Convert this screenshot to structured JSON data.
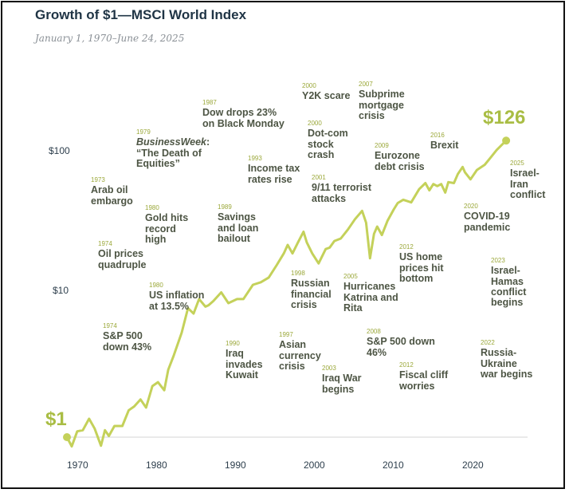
{
  "title": "Growth of $1—MSCI World Index",
  "subtitle": "January 1, 1970–June 24, 2025",
  "start_label": "$1",
  "end_label": "$126",
  "colors": {
    "line": "#c4d15a",
    "accent": "#a9bd44",
    "text": "#4d5544",
    "year": "#9ba83a"
  },
  "chart_data": {
    "type": "line",
    "title": "Growth of $1—MSCI World Index",
    "xlabel": "",
    "ylabel": "",
    "yscale": "log",
    "xlim": [
      1970,
      2025.5
    ],
    "ylim": [
      1,
      126
    ],
    "x_ticks": [
      "1970",
      "1980",
      "1990",
      "2000",
      "2010",
      "2020"
    ],
    "y_ticks": [
      {
        "value": 10,
        "label": "$10"
      },
      {
        "value": 100,
        "label": "$100"
      }
    ],
    "series": [
      {
        "name": "MSCI World Index growth of $1",
        "x": [
          1970,
          1970.6,
          1971.3,
          1972,
          1972.8,
          1973.5,
          1974.3,
          1974.8,
          1975.3,
          1976,
          1977,
          1977.8,
          1978.5,
          1979.3,
          1980,
          1980.8,
          1981.5,
          1982.3,
          1982.8,
          1983.5,
          1984.5,
          1985.3,
          1986,
          1986.7,
          1987.5,
          1987.9,
          1988.5,
          1989.5,
          1990.4,
          1991.5,
          1992.3,
          1993.5,
          1994.5,
          1995.5,
          1996.5,
          1997.4,
          1997.9,
          1998.5,
          1999.2,
          1999.9,
          2000.3,
          2001,
          2001.8,
          2002.7,
          2003.2,
          2003.8,
          2004.6,
          2005.5,
          2006.4,
          2007.3,
          2007.8,
          2008.3,
          2008.8,
          2009.2,
          2009.8,
          2010.5,
          2011.3,
          2011.8,
          2012.5,
          2013.5,
          2014.5,
          2015.3,
          2015.8,
          2016.3,
          2016.8,
          2017.3,
          2017.8,
          2018.2,
          2018.9,
          2019.4,
          2020,
          2020.3,
          2021,
          2021.8,
          2022.8,
          2023.5,
          2024.3,
          2025.5
        ],
        "y": [
          1,
          0.86,
          1.1,
          1.12,
          1.35,
          1.15,
          0.87,
          1.12,
          1.02,
          1.2,
          1.2,
          1.55,
          1.65,
          1.85,
          1.62,
          2.3,
          2.45,
          2.15,
          3.0,
          3.8,
          5.5,
          8.2,
          7.5,
          9.5,
          8.4,
          8.6,
          9.2,
          10.6,
          8.9,
          9.5,
          9.5,
          12.0,
          12.5,
          13.5,
          16.5,
          20.0,
          23.0,
          20.0,
          24.0,
          28.5,
          24.0,
          20.0,
          17.0,
          21.5,
          22.0,
          24.5,
          25.5,
          29.5,
          35.0,
          40.0,
          33.0,
          18.5,
          27.5,
          31.0,
          27.0,
          34.0,
          41.0,
          45.5,
          48.0,
          46.0,
          57.0,
          63.0,
          56.0,
          62.0,
          60.0,
          62.0,
          54.0,
          64.0,
          63.0,
          73.0,
          82.0,
          75.0,
          67.0,
          78.0,
          85.0,
          95.0,
          108.0,
          126.0
        ]
      }
    ],
    "annotations": [
      {
        "year": "1973",
        "text": "Arab oil embargo"
      },
      {
        "year": "1974",
        "text": "Oil prices quadruple"
      },
      {
        "year": "1974",
        "text": "S&P 500 down 43%"
      },
      {
        "year": "1979",
        "text_italic": "BusinessWeek",
        "text": ": “The Death of Equities”"
      },
      {
        "year": "1980",
        "text": "Gold hits record high"
      },
      {
        "year": "1980",
        "text": "US inflation at 13.5%"
      },
      {
        "year": "1987",
        "text": "Dow drops 23% on Black Monday"
      },
      {
        "year": "1989",
        "text": "Savings and loan bailout"
      },
      {
        "year": "1990",
        "text": "Iraq invades Kuwait"
      },
      {
        "year": "1993",
        "text": "Income tax rates rise"
      },
      {
        "year": "1997",
        "text": "Asian currency crisis"
      },
      {
        "year": "1998",
        "text": "Russian financial crisis"
      },
      {
        "year": "2000",
        "text": "Y2K scare"
      },
      {
        "year": "2000",
        "text": "Dot-com stock crash"
      },
      {
        "year": "2001",
        "text": "9/11 terrorist attacks"
      },
      {
        "year": "2003",
        "text": "Iraq War begins"
      },
      {
        "year": "2005",
        "text": "Hurricanes Katrina and Rita"
      },
      {
        "year": "2007",
        "text": "Subprime mortgage crisis"
      },
      {
        "year": "2008",
        "text": "S&P 500 down 46%"
      },
      {
        "year": "2009",
        "text": "Eurozone debt crisis"
      },
      {
        "year": "2012",
        "text": "US home prices hit bottom"
      },
      {
        "year": "2012",
        "text": "Fiscal cliff worries"
      },
      {
        "year": "2016",
        "text": "Brexit"
      },
      {
        "year": "2020",
        "text": "COVID-19 pandemic"
      },
      {
        "year": "2022",
        "text": "Russia-Ukraine war begins"
      },
      {
        "year": "2023",
        "text": "Israel-Hamas conflict begins"
      },
      {
        "year": "2025",
        "text": "Israel-Iran conflict"
      }
    ]
  }
}
